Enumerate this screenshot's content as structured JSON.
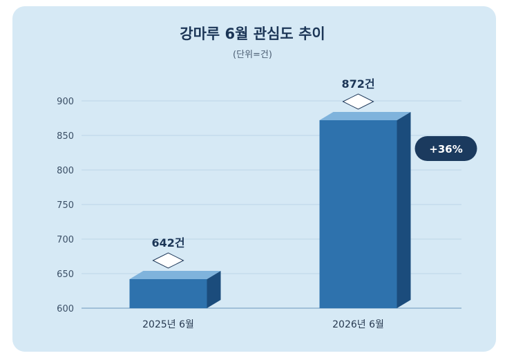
{
  "chart_data": {
    "type": "bar",
    "title": "강마루 6월 관심도 추이",
    "subtitle": "(단위=건)",
    "categories": [
      "2025년 6월",
      "2026년 6월"
    ],
    "values": [
      642,
      872
    ],
    "value_labels": [
      "642건",
      "872건"
    ],
    "ylim": [
      600,
      900
    ],
    "yticks": [
      600,
      650,
      700,
      750,
      800,
      850,
      900
    ],
    "grid": true,
    "change_badge": "+36%",
    "colors": {
      "bar_front": "#2e72ad",
      "bar_top": "#7fb3dc",
      "bar_side": "#1b4c7c",
      "badge": "#1b3a5e",
      "background": "#d6e9f5"
    }
  }
}
